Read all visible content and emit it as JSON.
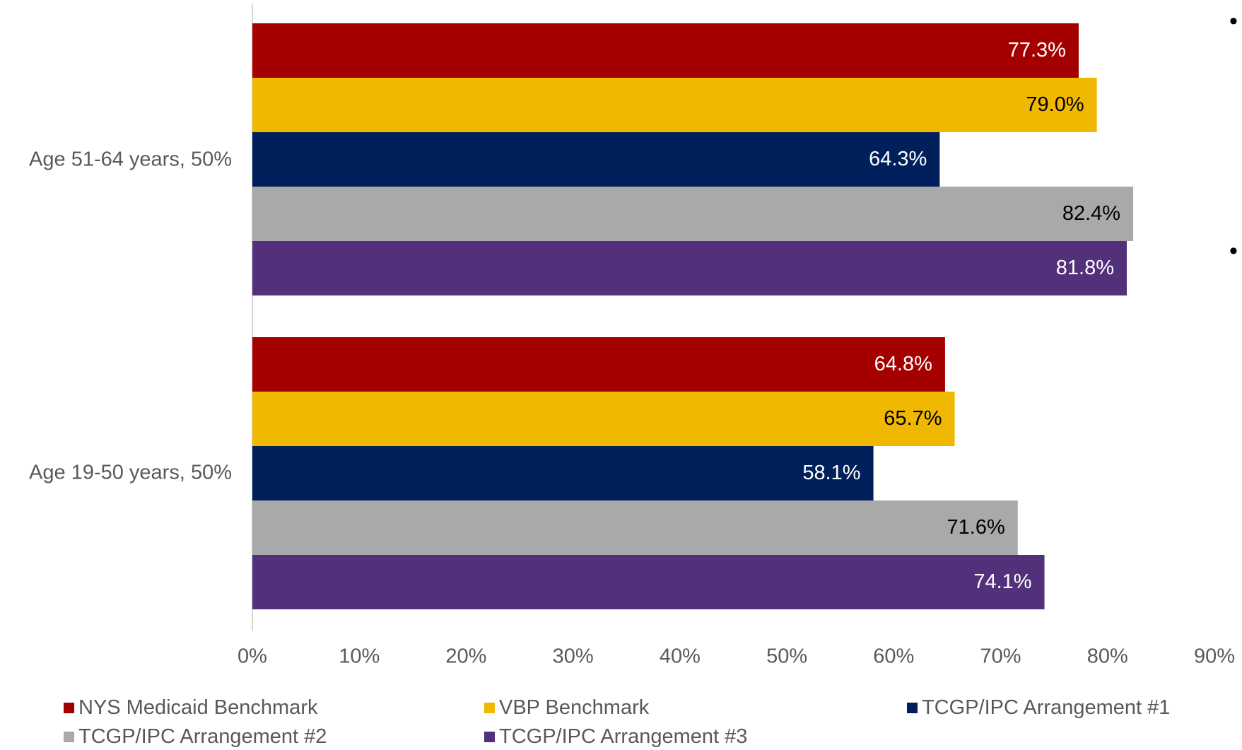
{
  "chart_data": {
    "type": "bar",
    "orientation": "horizontal",
    "categories": [
      "Age 51-64 years, 50%",
      "Age 19-50 years, 50%"
    ],
    "series": [
      {
        "name": "NYS Medicaid Benchmark",
        "color": "#a50000",
        "label_color": "#ffffff",
        "values": [
          77.3,
          64.8
        ],
        "labels": [
          "77.3%",
          "64.8%"
        ]
      },
      {
        "name": "VBP Benchmark",
        "color": "#f0b800",
        "label_color": "#000000",
        "values": [
          79.0,
          65.7
        ],
        "labels": [
          "79.0%",
          "65.7%"
        ]
      },
      {
        "name": "TCGP/IPC Arrangement #1",
        "color": "#00205b",
        "label_color": "#ffffff",
        "values": [
          64.3,
          58.1
        ],
        "labels": [
          "64.3%",
          "58.1%"
        ]
      },
      {
        "name": "TCGP/IPC Arrangement #2",
        "color": "#a9a9a9",
        "label_color": "#000000",
        "values": [
          82.4,
          71.6
        ],
        "labels": [
          "82.4%",
          "71.6%"
        ]
      },
      {
        "name": "TCGP/IPC Arrangement #3",
        "color": "#52317a",
        "label_color": "#ffffff",
        "values": [
          81.8,
          74.1
        ],
        "labels": [
          "81.8%",
          "74.1%"
        ]
      }
    ],
    "xlim": [
      0,
      90
    ],
    "x_ticks": [
      "0%",
      "10%",
      "20%",
      "30%",
      "40%",
      "50%",
      "60%",
      "70%",
      "80%",
      "90%"
    ],
    "legend_position": "bottom",
    "grid": false,
    "title": "",
    "xlabel": "",
    "ylabel": ""
  },
  "bullets": [
    "•",
    "•"
  ]
}
